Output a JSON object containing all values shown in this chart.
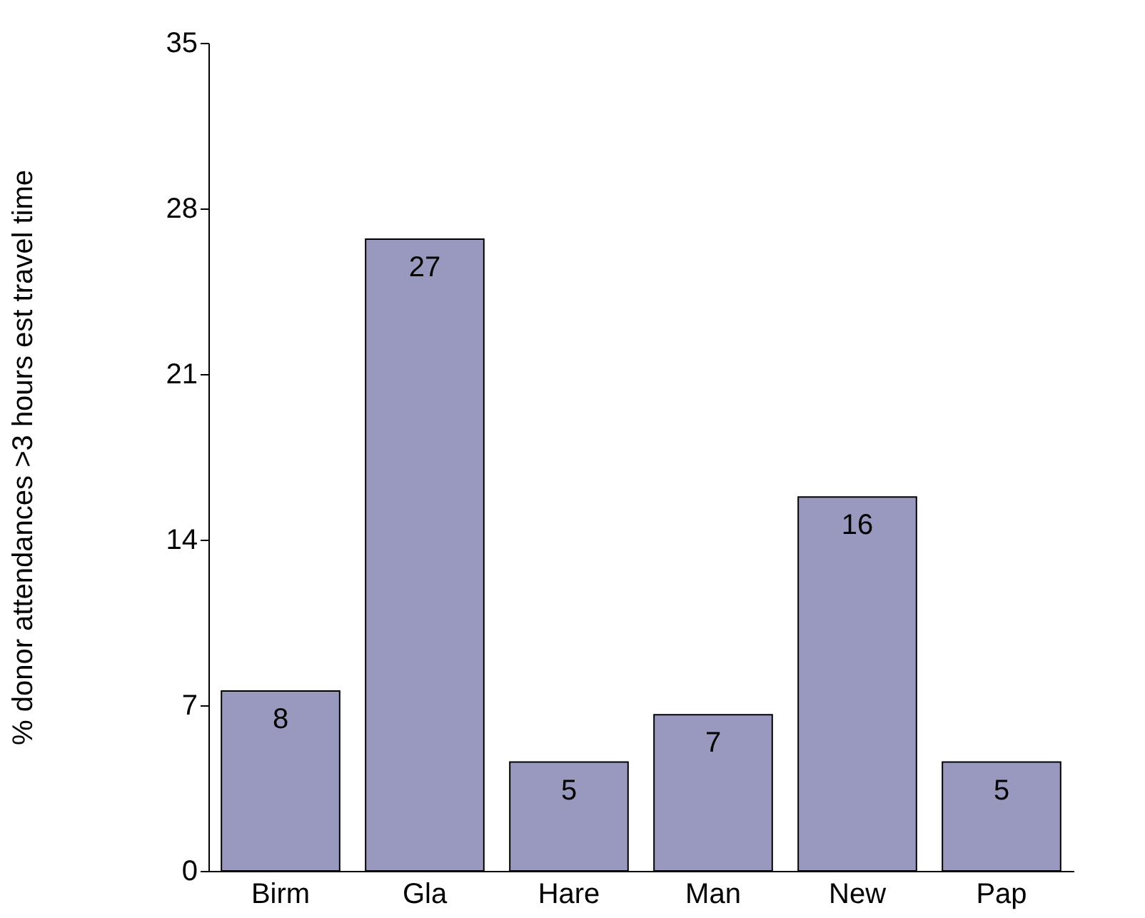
{
  "chart_data": {
    "type": "bar",
    "ylabel": "% donor attendances >3 hours est travel time",
    "categories": [
      "Birm",
      "Gla",
      "Hare",
      "Man",
      "New",
      "Pap"
    ],
    "values": [
      7.6,
      26.7,
      4.6,
      6.6,
      15.8,
      4.6
    ],
    "value_labels": [
      "8",
      "27",
      "5",
      "7",
      "16",
      "5"
    ],
    "color": "#9999c0",
    "ylim": [
      0,
      35
    ],
    "yticks": [
      0,
      7,
      14,
      21,
      28,
      35
    ],
    "grid": false
  }
}
